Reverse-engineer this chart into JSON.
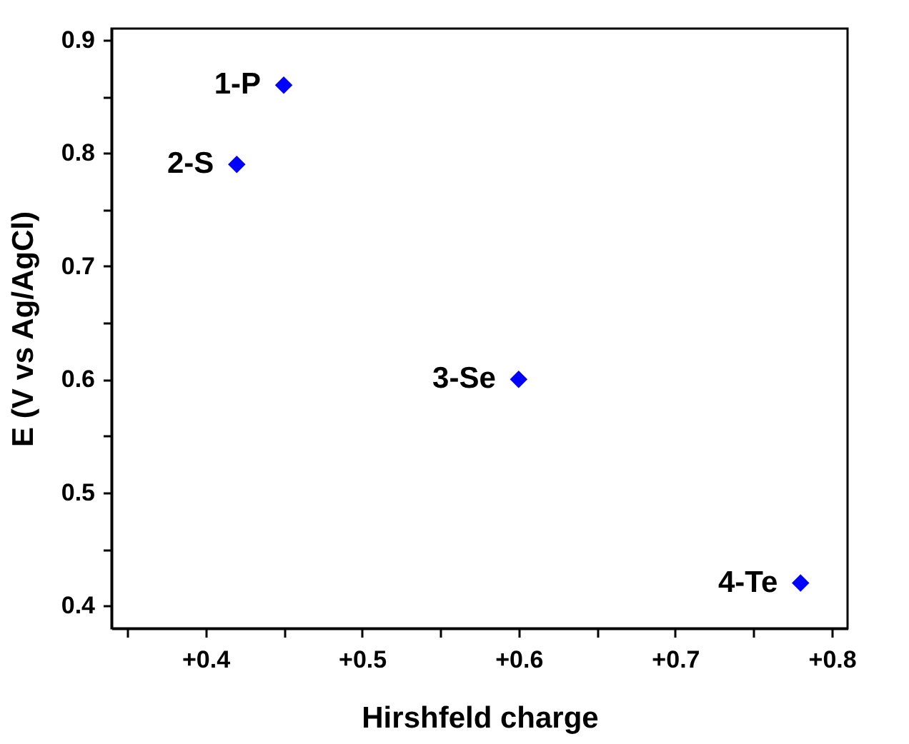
{
  "chart_data": {
    "type": "scatter",
    "xlabel": "Hirshfeld charge",
    "ylabel": "E (V vs Ag/AgCl)",
    "x": [
      0.45,
      0.42,
      0.6,
      0.78
    ],
    "series": [
      {
        "color": "#0000ff",
        "values": [
          0.86,
          0.79,
          0.6,
          0.42
        ]
      }
    ],
    "marker": "diamond",
    "grid": false,
    "xlim": [
      0.34,
      0.81
    ],
    "ylim": [
      0.38,
      0.91
    ],
    "xticks": [
      {
        "value": 0.35,
        "label": null
      },
      {
        "value": 0.4,
        "label": "+0.4"
      },
      {
        "value": 0.45,
        "label": null
      },
      {
        "value": 0.5,
        "label": "+0.5"
      },
      {
        "value": 0.55,
        "label": null
      },
      {
        "value": 0.6,
        "label": "+0.6"
      },
      {
        "value": 0.65,
        "label": null
      },
      {
        "value": 0.7,
        "label": "+0.7"
      },
      {
        "value": 0.75,
        "label": null
      },
      {
        "value": 0.8,
        "label": "+0.8"
      }
    ],
    "yticks": [
      0.4,
      {
        "value": 0.45,
        "label": null
      },
      0.5,
      {
        "value": 0.55,
        "label": null
      },
      0.6,
      {
        "value": 0.65,
        "label": null
      },
      0.7,
      {
        "value": 0.75,
        "label": null
      },
      0.8,
      {
        "value": 0.85,
        "label": null
      },
      0.9
    ],
    "annotations": [
      {
        "text": "1-P",
        "x": 0.45,
        "y": 0.86
      },
      {
        "text": "2-S",
        "x": 0.42,
        "y": 0.79
      },
      {
        "text": "3-Se",
        "x": 0.6,
        "y": 0.6
      },
      {
        "text": "4-Te",
        "x": 0.78,
        "y": 0.42
      }
    ]
  }
}
